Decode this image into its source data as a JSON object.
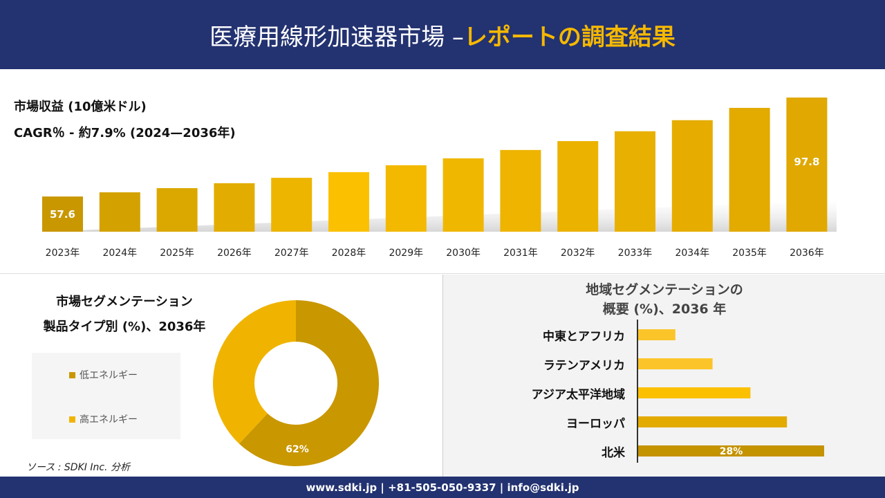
{
  "header": {
    "title_main": "医療用線形加速器市場 –",
    "title_accent": "レポートの調査結果"
  },
  "chart_data": [
    {
      "type": "bar",
      "title": "市場収益 (10億米ドル)",
      "subtitle": "CAGR％ - 約7.9% (2024—2036年)",
      "categories": [
        "2023年",
        "2024年",
        "2025年",
        "2026年",
        "2027年",
        "2028年",
        "2029年",
        "2030年",
        "2031年",
        "2032年",
        "2033年",
        "2034年",
        "2035年",
        "2036年"
      ],
      "values": [
        57.6,
        59.3,
        61.0,
        63.0,
        65.2,
        67.5,
        70.3,
        73.1,
        76.5,
        80.1,
        84.1,
        88.6,
        93.6,
        97.8
      ],
      "data_labels": {
        "0": "57.6",
        "13": "97.8"
      },
      "ylim": [
        43.3,
        100
      ],
      "grid": false,
      "colors": [
        "#c99700",
        "#d4a200",
        "#dba800",
        "#e2ad00",
        "#edb500",
        "#fbc000",
        "#f3b900",
        "#f0b700",
        "#eeb400",
        "#ebb200",
        "#e8b000",
        "#e6ad00",
        "#e3aa00",
        "#e0a800"
      ]
    },
    {
      "type": "pie",
      "title": "市場セグメンテーション",
      "subtitle": "製品タイプ別 (%)、2036年",
      "categories": [
        "低エネルギー",
        "高エネルギー"
      ],
      "values": [
        62,
        38
      ],
      "data_labels": [
        "62%",
        ""
      ],
      "colors": [
        "#c99700",
        "#f0b400"
      ],
      "legend": "left"
    },
    {
      "type": "bar",
      "orientation": "horizontal",
      "title": "地域セグメンテーションの",
      "subtitle": "概要 (%)、2036 年",
      "categories": [
        "中東とアフリカ",
        "ラテンアメリカ",
        "アジア太平洋地域",
        "ヨーロッパ",
        "北米"
      ],
      "values": [
        5.6,
        11.2,
        16.9,
        22.4,
        28
      ],
      "data_labels": [
        "",
        "",
        "",
        "",
        "28%"
      ],
      "colors": [
        "#fbc52a",
        "#fbc52a",
        "#fbc000",
        "#e3aa00",
        "#c49300"
      ]
    }
  ],
  "source": "ソース : SDKI Inc. 分析",
  "footer": {
    "contact": "www.sdki.jp | +81-505-050-9337 | info@sdki.jp"
  }
}
